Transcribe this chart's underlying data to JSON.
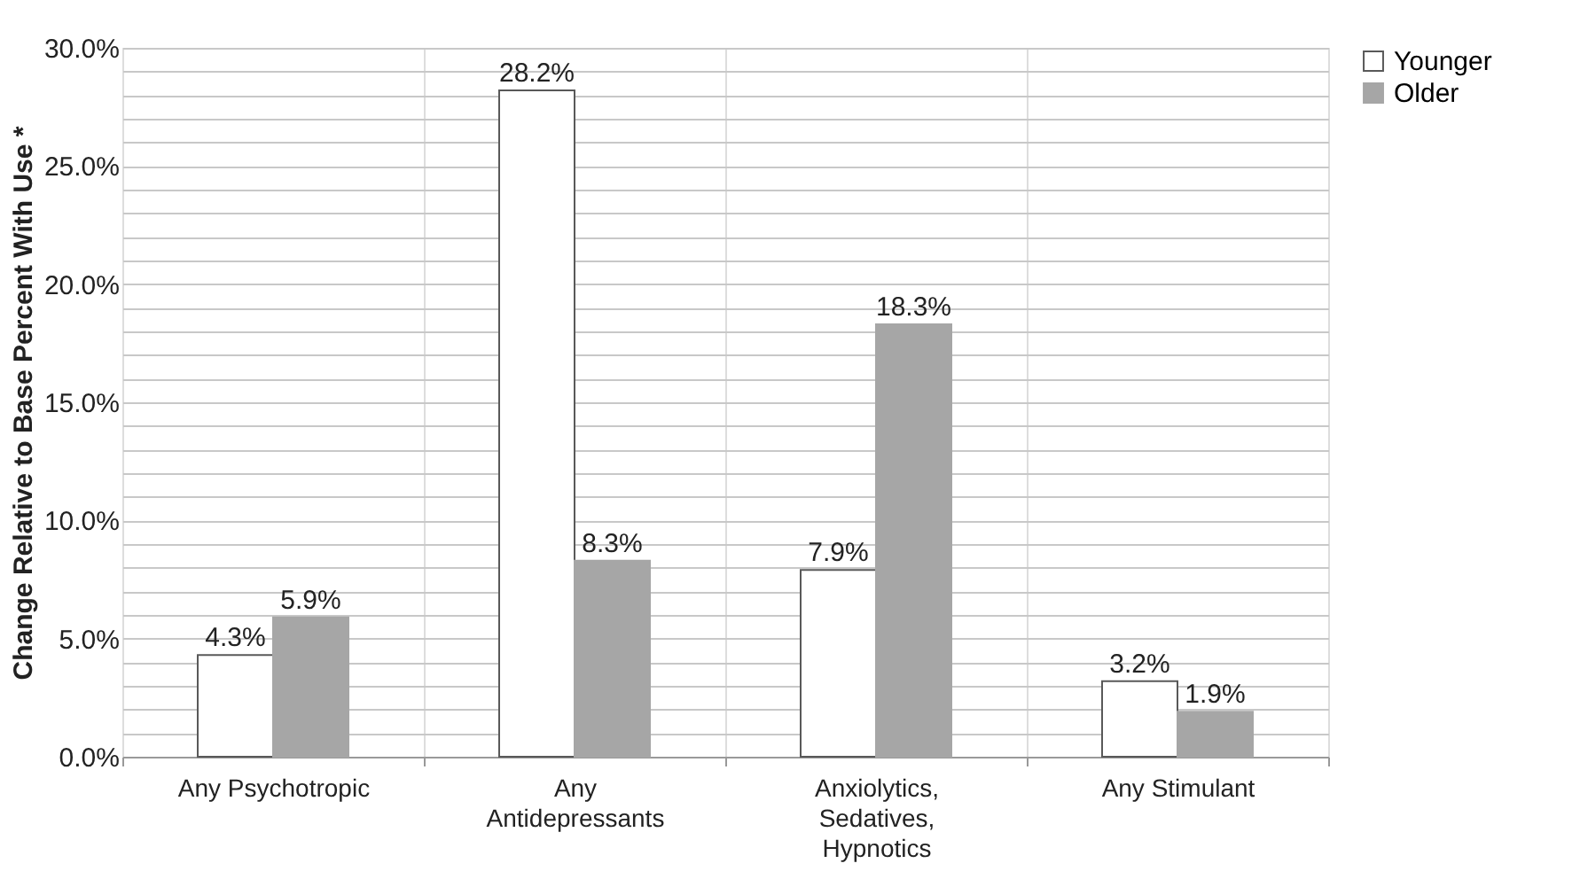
{
  "chart_data": {
    "type": "bar",
    "ylabel": "Change Relative to Base Percent With Use *",
    "categories": [
      "Any Psychotropic",
      "Any Antidepressants",
      "Anxiolytics, Sedatives, Hypnotics",
      "Any Stimulant"
    ],
    "series": [
      {
        "name": "Younger",
        "color": "#ffffff",
        "values": [
          4.3,
          28.2,
          7.9,
          3.2
        ],
        "value_labels": [
          "4.3%",
          "28.2%",
          "7.9%",
          "3.2%"
        ]
      },
      {
        "name": "Older",
        "color": "#a6a6a6",
        "values": [
          5.9,
          8.3,
          18.3,
          1.9
        ],
        "value_labels": [
          "5.9%",
          "8.3%",
          "18.3%",
          "1.9%"
        ]
      }
    ],
    "ylim": [
      0,
      30
    ],
    "yticks": [
      {
        "value": 0,
        "label": "0.0%"
      },
      {
        "value": 1,
        "label": null
      },
      {
        "value": 2,
        "label": null
      },
      {
        "value": 3,
        "label": null
      },
      {
        "value": 4,
        "label": null
      },
      {
        "value": 5,
        "label": "5.0%"
      },
      {
        "value": 6,
        "label": null
      },
      {
        "value": 7,
        "label": null
      },
      {
        "value": 8,
        "label": null
      },
      {
        "value": 9,
        "label": null
      },
      {
        "value": 10,
        "label": "10.0%"
      },
      {
        "value": 11,
        "label": null
      },
      {
        "value": 12,
        "label": null
      },
      {
        "value": 13,
        "label": null
      },
      {
        "value": 14,
        "label": null
      },
      {
        "value": 15,
        "label": "15.0%"
      },
      {
        "value": 16,
        "label": null
      },
      {
        "value": 17,
        "label": null
      },
      {
        "value": 18,
        "label": null
      },
      {
        "value": 19,
        "label": null
      },
      {
        "value": 20,
        "label": "20.0%"
      },
      {
        "value": 21,
        "label": null
      },
      {
        "value": 22,
        "label": null
      },
      {
        "value": 23,
        "label": null
      },
      {
        "value": 24,
        "label": null
      },
      {
        "value": 25,
        "label": "25.0%"
      },
      {
        "value": 26,
        "label": null
      },
      {
        "value": 27,
        "label": null
      },
      {
        "value": 28,
        "label": null
      },
      {
        "value": 29,
        "label": null
      },
      {
        "value": 30,
        "label": "30.0%"
      }
    ],
    "grid": true,
    "legend": "right"
  }
}
